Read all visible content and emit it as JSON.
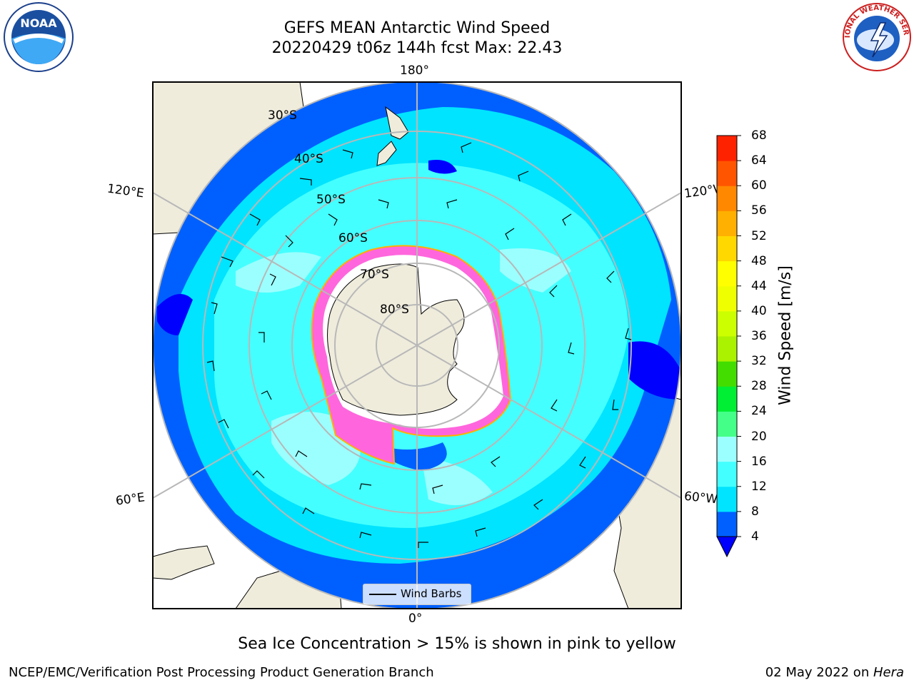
{
  "title": {
    "line1": "GEFS MEAN Antarctic Wind Speed",
    "line2": "20220429 t06z 144h fcst   Max: 22.43"
  },
  "map": {
    "projection": "south-polar-stereographic",
    "longitude_labels": {
      "top": "180°",
      "bottom": "0°",
      "left_upper": "120°E",
      "left_lower": "60°E",
      "right_upper": "120°W",
      "right_lower": "60°W"
    },
    "latitude_labels": [
      "30°S",
      "40°S",
      "50°S",
      "60°S",
      "70°S",
      "80°S"
    ],
    "legend_label": "Wind Barbs",
    "colors": {
      "land": "#efecdc",
      "ice_sheet": "#ffffff",
      "sea_ice_edge": "#ff66dd",
      "graticule": "#b8b8b8"
    }
  },
  "colorbar": {
    "label": "Wind Speed [m/s]",
    "ticks": [
      "4",
      "8",
      "12",
      "16",
      "20",
      "24",
      "28",
      "32",
      "36",
      "40",
      "44",
      "48",
      "52",
      "56",
      "60",
      "64",
      "68"
    ],
    "colors": [
      "#0060ff",
      "#00e4ff",
      "#44ffff",
      "#9cffff",
      "#44ff88",
      "#00ee33",
      "#44dd00",
      "#aaf200",
      "#ccff00",
      "#f0ff00",
      "#ffff00",
      "#ffd800",
      "#ffb000",
      "#ff8800",
      "#ff5500",
      "#ff2200"
    ],
    "under_color": "#0000ff"
  },
  "caption": "Sea Ice Concentration > 15% is shown in pink to yellow",
  "footer": {
    "left": "NCEP/EMC/Verification Post Processing Product Generation Branch",
    "right_date": "02 May 2022 on ",
    "right_host": "Hera"
  },
  "logos": {
    "left": "NOAA",
    "right_text": "NATIONAL WEATHER SERVICE"
  }
}
